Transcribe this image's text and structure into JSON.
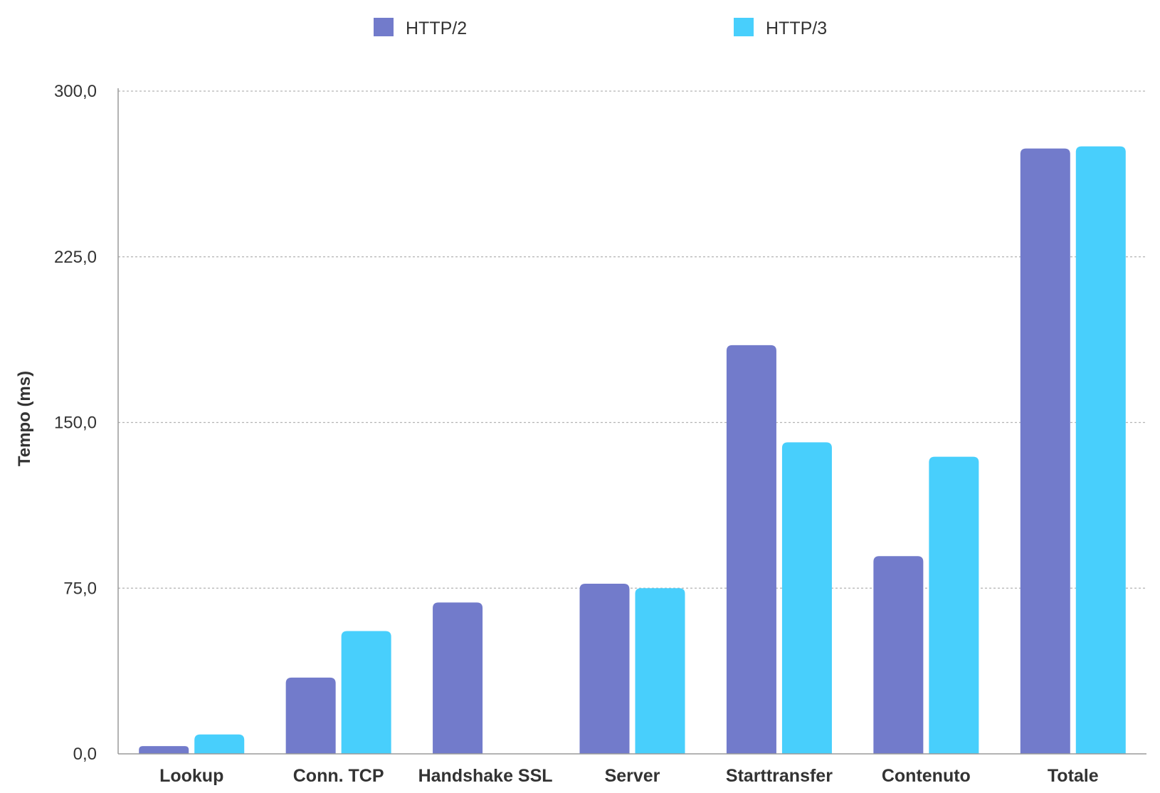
{
  "chart_data": {
    "type": "bar",
    "title": "",
    "xlabel": "",
    "ylabel": "Tempo (ms)",
    "ylim": [
      0,
      300
    ],
    "yticks": [
      "0,0",
      "75,0",
      "150,0",
      "225,0",
      "300,0"
    ],
    "grid": true,
    "legend_position": "top",
    "categories": [
      "Lookup",
      "Conn. TCP",
      "Handshake SSL",
      "Server",
      "Starttransfer",
      "Contenuto",
      "Totale"
    ],
    "series": [
      {
        "name": "HTTP/2",
        "color": "#727bcb",
        "values": [
          3.5,
          34.5,
          68.5,
          77,
          185,
          89.5,
          274
        ]
      },
      {
        "name": "HTTP/3",
        "color": "#48cffc",
        "values": [
          8.8,
          55.6,
          null,
          75,
          141,
          134.5,
          275
        ]
      }
    ]
  }
}
